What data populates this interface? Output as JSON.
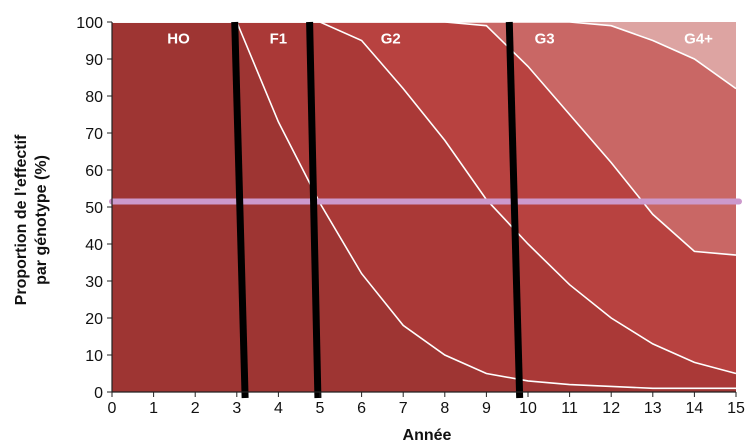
{
  "chart_data": {
    "type": "area",
    "stacked": true,
    "xlabel": "Année",
    "ylabel_lines": [
      "Proportion  de l’effectif",
      "par génotype (%)"
    ],
    "xlim": [
      0,
      15
    ],
    "ylim": [
      0,
      100
    ],
    "x_ticks": [
      0,
      1,
      2,
      3,
      4,
      5,
      6,
      7,
      8,
      9,
      10,
      11,
      12,
      13,
      14,
      15
    ],
    "y_ticks": [
      0,
      10,
      20,
      30,
      40,
      50,
      60,
      70,
      80,
      90,
      100
    ],
    "grid": false,
    "legend": "none (labels inside areas)",
    "x": [
      0,
      1,
      2,
      3,
      4,
      5,
      6,
      7,
      8,
      9,
      10,
      11,
      12,
      13,
      14,
      15
    ],
    "series": [
      {
        "name": "HO",
        "color": "#9e3533",
        "cumulative_upper": [
          100,
          100,
          100,
          100,
          73,
          51,
          32,
          18,
          10,
          5,
          3,
          2,
          1.5,
          1,
          1,
          1
        ]
      },
      {
        "name": "F1",
        "color": "#aa3937",
        "cumulative_upper": [
          100,
          100,
          100,
          100,
          100,
          100,
          95,
          82,
          68,
          52,
          40,
          29,
          20,
          13,
          8,
          5
        ]
      },
      {
        "name": "G2",
        "color": "#b84240",
        "cumulative_upper": [
          100,
          100,
          100,
          100,
          100,
          100,
          100,
          100,
          100,
          99,
          88,
          75,
          62,
          48,
          38,
          37
        ]
      },
      {
        "name": "G3",
        "color": "#c96765",
        "cumulative_upper": [
          100,
          100,
          100,
          100,
          100,
          100,
          100,
          100,
          100,
          100,
          100,
          100,
          99,
          95,
          90,
          82
        ]
      },
      {
        "name": "G4+",
        "color": "#dda4a2",
        "cumulative_upper": [
          100,
          100,
          100,
          100,
          100,
          100,
          100,
          100,
          100,
          100,
          100,
          100,
          100,
          100,
          100,
          100
        ]
      }
    ],
    "annotations": {
      "horizontal_line": {
        "y": 51.5,
        "color": "#cc99cc"
      },
      "vertical_lines": [
        {
          "x_top": 2.95,
          "x_bottom": 3.2
        },
        {
          "x_top": 4.75,
          "x_bottom": 4.95
        },
        {
          "x_top": 9.55,
          "x_bottom": 9.8
        }
      ],
      "label_positions": [
        {
          "text": "HO",
          "x": 1.6,
          "y": 95
        },
        {
          "text": "F1",
          "x": 4.0,
          "y": 95
        },
        {
          "text": "G2",
          "x": 6.7,
          "y": 95
        },
        {
          "text": "G3",
          "x": 10.4,
          "y": 95
        },
        {
          "text": "G4+",
          "x": 14.1,
          "y": 95
        }
      ]
    }
  }
}
